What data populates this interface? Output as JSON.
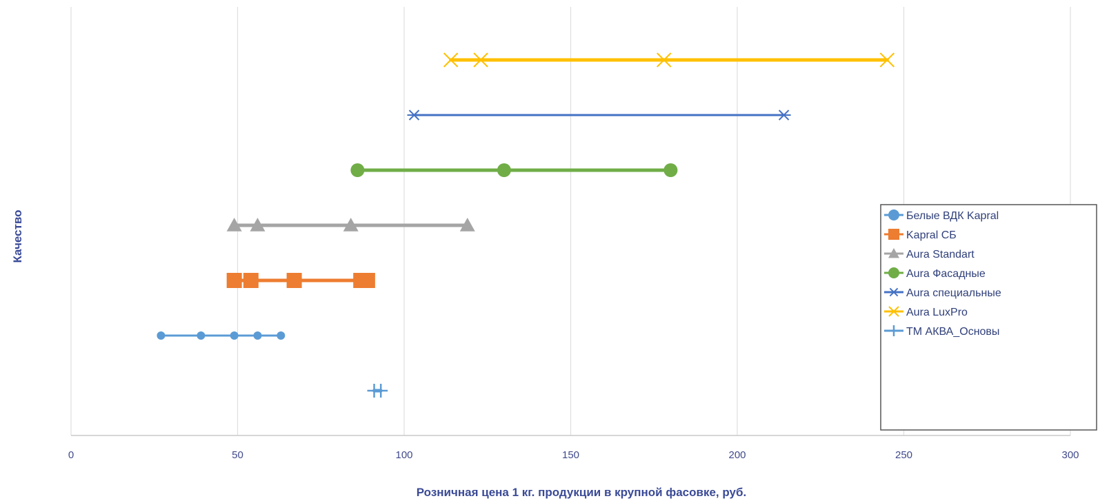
{
  "chart_data": {
    "type": "line",
    "xlabel": "Розничная цена 1 кг. продукции в крупной фасовке, руб.",
    "ylabel": "Качество",
    "xlim": [
      0,
      300
    ],
    "x_ticks": [
      0,
      50,
      100,
      150,
      200,
      250,
      300
    ],
    "grid": "vertical",
    "legend_position": "right",
    "series": [
      {
        "name": "Белые ВДК Kapral",
        "y": 1,
        "x": [
          27,
          39,
          49,
          56,
          63
        ],
        "color": "#5b9bd5",
        "marker": "circle-small"
      },
      {
        "name": "Kapral СБ",
        "y": 2,
        "x": [
          49,
          54,
          67,
          87,
          89
        ],
        "color": "#ed7d31",
        "marker": "square"
      },
      {
        "name": "Aura Standart",
        "y": 3,
        "x": [
          49,
          56,
          84,
          119
        ],
        "color": "#a5a5a5",
        "marker": "triangle"
      },
      {
        "name": "Aura Фасадные",
        "y": 4,
        "x": [
          86,
          130,
          180
        ],
        "color": "#70ad47",
        "marker": "circle"
      },
      {
        "name": "Aura специальные",
        "y": 5,
        "x": [
          103,
          214
        ],
        "color": "#4472c4",
        "marker": "star"
      },
      {
        "name": "Aura LuxPro",
        "y": 6,
        "x": [
          114,
          123,
          178,
          245
        ],
        "color": "#ffc000",
        "marker": "x"
      },
      {
        "name": "ТМ АКВА_Основы",
        "y": 0,
        "x": [
          91,
          93
        ],
        "color": "#5b9bd5",
        "marker": "plus"
      }
    ]
  }
}
